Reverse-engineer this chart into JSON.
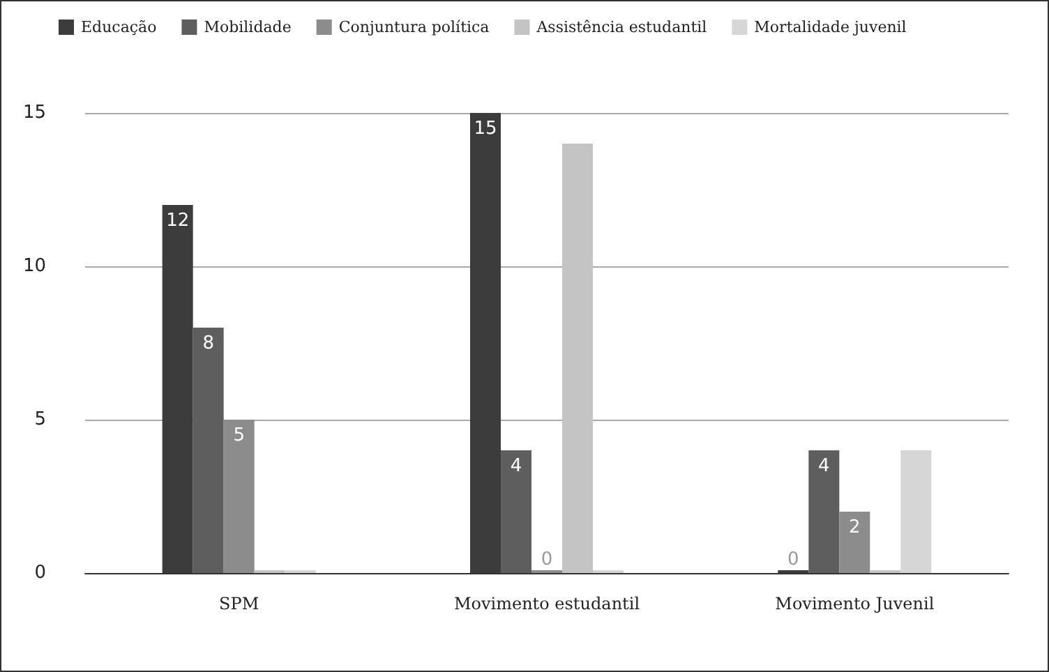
{
  "chart_data": {
    "type": "bar",
    "categories": [
      "SPM",
      "Movimento estudantil",
      "Movimento Juvenil"
    ],
    "series": [
      {
        "name": "Educação",
        "color": "#3c3c3c",
        "values": [
          12,
          15,
          0
        ],
        "value_labels": [
          "12",
          "15",
          "0"
        ]
      },
      {
        "name": "Mobilidade",
        "color": "#5e5e5e",
        "values": [
          8,
          4,
          4
        ],
        "value_labels": [
          "8",
          "4",
          "4"
        ]
      },
      {
        "name": "Conjuntura política",
        "color": "#8c8c8c",
        "values": [
          5,
          0,
          2
        ],
        "value_labels": [
          "5",
          "0",
          "2"
        ]
      },
      {
        "name": "Assistência estudantil",
        "color": "#c4c4c4",
        "values": [
          0,
          14,
          0
        ],
        "value_labels": [
          null,
          null,
          null
        ]
      },
      {
        "name": "Mortalidade juvenil",
        "color": "#d6d6d6",
        "values": [
          0,
          0,
          4
        ],
        "value_labels": [
          null,
          null,
          null
        ]
      }
    ],
    "ylim": [
      0,
      15
    ],
    "yticks": [
      0,
      5,
      10,
      15
    ],
    "grid": "y",
    "legend": "top left"
  }
}
